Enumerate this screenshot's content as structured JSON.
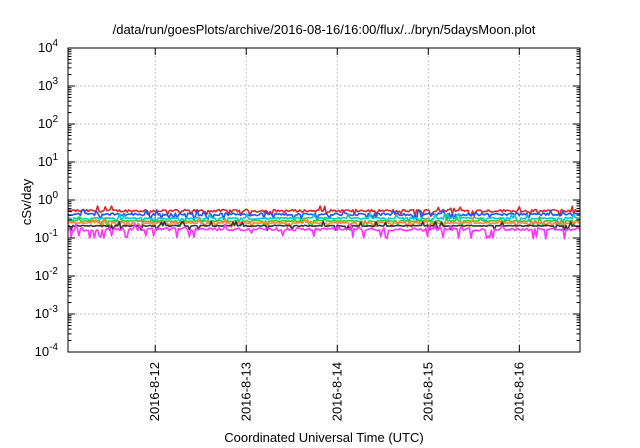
{
  "chart_data": {
    "type": "line",
    "title": "/data/run/goesPlots/archive/2016-08-16/16:00/flux/../bryn/5daysMoon.plot",
    "xlabel": "Coordinated Universal Time (UTC)",
    "ylabel": "cSv/day",
    "y_scale": "log",
    "ylim": [
      0.0001,
      10000
    ],
    "y_ticks": [
      {
        "base": "10",
        "exp": "4"
      },
      {
        "base": "10",
        "exp": "3"
      },
      {
        "base": "10",
        "exp": "2"
      },
      {
        "base": "10",
        "exp": "1"
      },
      {
        "base": "10",
        "exp": "0"
      },
      {
        "base": "10",
        "exp": "-1"
      },
      {
        "base": "10",
        "exp": "-2"
      },
      {
        "base": "10",
        "exp": "-3"
      },
      {
        "base": "10",
        "exp": "-4"
      }
    ],
    "xlim": [
      "2016-08-11 01:00",
      "2016-08-16 16:00"
    ],
    "x_ticks": [
      "2016-8-12",
      "2016-8-13",
      "2016-8-14",
      "2016-8-15",
      "2016-8-16"
    ],
    "x_tick_dates": [
      "2016-08-12",
      "2016-08-13",
      "2016-08-14",
      "2016-08-15",
      "2016-08-16"
    ],
    "grid": true,
    "series": [
      {
        "color": "#d62728",
        "level": 0.52,
        "spread": 0.1
      },
      {
        "color": "#2255ee",
        "level": 0.42,
        "spread": 0.1
      },
      {
        "color": "#00cccc",
        "level": 0.33,
        "spread": 0.07
      },
      {
        "color": "#33cc33",
        "level": 0.28,
        "spread": 0.05
      },
      {
        "color": "#ff8833",
        "level": 0.25,
        "spread": 0.04
      },
      {
        "color": "#333333",
        "level": 0.21,
        "spread": 0.04
      },
      {
        "color": "#ff33ff",
        "level": 0.17,
        "spread": 0.12
      }
    ]
  }
}
